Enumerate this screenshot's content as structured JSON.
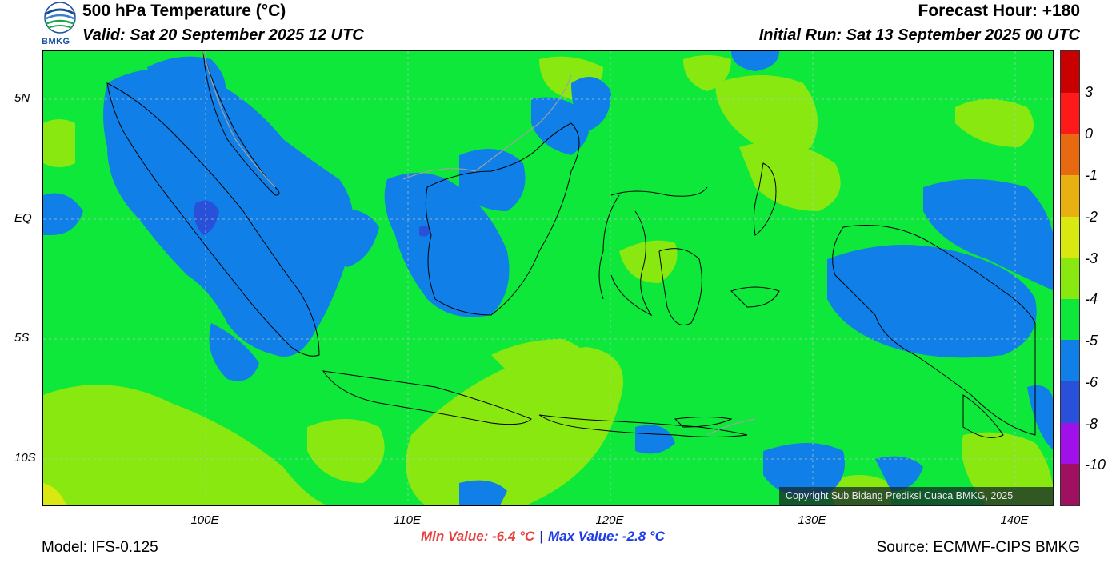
{
  "header": {
    "title": "500 hPa Temperature (°C)",
    "valid": "Valid: Sat 20 September 2025 12 UTC",
    "forecast_hour": "Forecast Hour: +180",
    "initial_run": "Initial Run: Sat 13 September 2025 00 UTC"
  },
  "logo": {
    "text": "BMKG",
    "icon": "bmkg-logo-icon"
  },
  "map": {
    "lat_labels": [
      "5N",
      "EQ",
      "5S",
      "10S"
    ],
    "lon_labels": [
      "100E",
      "110E",
      "120E",
      "130E",
      "140E"
    ],
    "copyright": "Copyright Sub Bidang Prediksi Cuaca BMKG, 2025",
    "colors": {
      "cold_blue": "#1080e8",
      "deep_blue": "#2850d8",
      "green": "#0ee83a",
      "light_green": "#88e810",
      "yellow_green": "#d8e810"
    }
  },
  "colorbar": {
    "labels": [
      "3",
      "0",
      "-1",
      "-2",
      "-3",
      "-4",
      "-5",
      "-6",
      "-8",
      "-10"
    ],
    "colors": [
      "#c80000",
      "#ff1a1a",
      "#e86a10",
      "#e8b010",
      "#d8e810",
      "#88e810",
      "#0ee83a",
      "#1080e8",
      "#2850d8",
      "#a010e8",
      "#a01060"
    ]
  },
  "stats": {
    "min": "Min Value: -6.4 °C",
    "separator": "|",
    "max": "Max Value: -2.8 °C"
  },
  "footer": {
    "model": "Model: IFS-0.125",
    "source": "Source: ECMWF-CIPS BMKG"
  }
}
